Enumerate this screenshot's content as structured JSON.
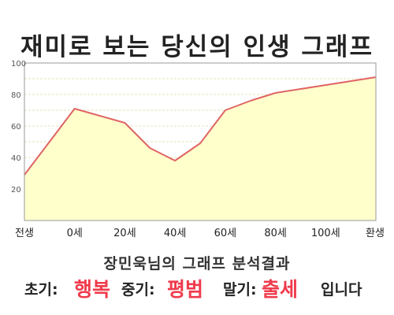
{
  "title": "재미로 보는 당신의 인생 그래프",
  "colors": {
    "line": "#e06464",
    "area": "#ffffcc",
    "grid": "#e6e3b8",
    "highlight": "#ef3b4c"
  },
  "chart_data": {
    "type": "area",
    "title": "재미로 보는 당신의 인생 그래프",
    "xlabel": "",
    "ylabel": "",
    "categories": [
      "전생",
      "0세",
      "20세",
      "40세",
      "60세",
      "80세",
      "100세",
      "환생"
    ],
    "y_ticks": [
      20,
      40,
      60,
      80,
      100
    ],
    "ylim": [
      0,
      100
    ],
    "grid": true,
    "legend": "none",
    "points": [
      {
        "x": 0,
        "y": 29
      },
      {
        "x": 1,
        "y": 71
      },
      {
        "x": 2,
        "y": 62
      },
      {
        "x": 2.5,
        "y": 46
      },
      {
        "x": 3,
        "y": 38
      },
      {
        "x": 3.5,
        "y": 49
      },
      {
        "x": 4,
        "y": 70
      },
      {
        "x": 4.5,
        "y": 76
      },
      {
        "x": 5,
        "y": 81
      },
      {
        "x": 6,
        "y": 86
      },
      {
        "x": 7,
        "y": 91
      }
    ]
  },
  "result": {
    "heading": "장민욱님의 그래프 분석결과",
    "early_label": "초기:",
    "early_value": "행복",
    "mid_label": "중기:",
    "mid_value": "평범",
    "late_label": "말기:",
    "late_value": "출세",
    "suffix": "입니다"
  }
}
